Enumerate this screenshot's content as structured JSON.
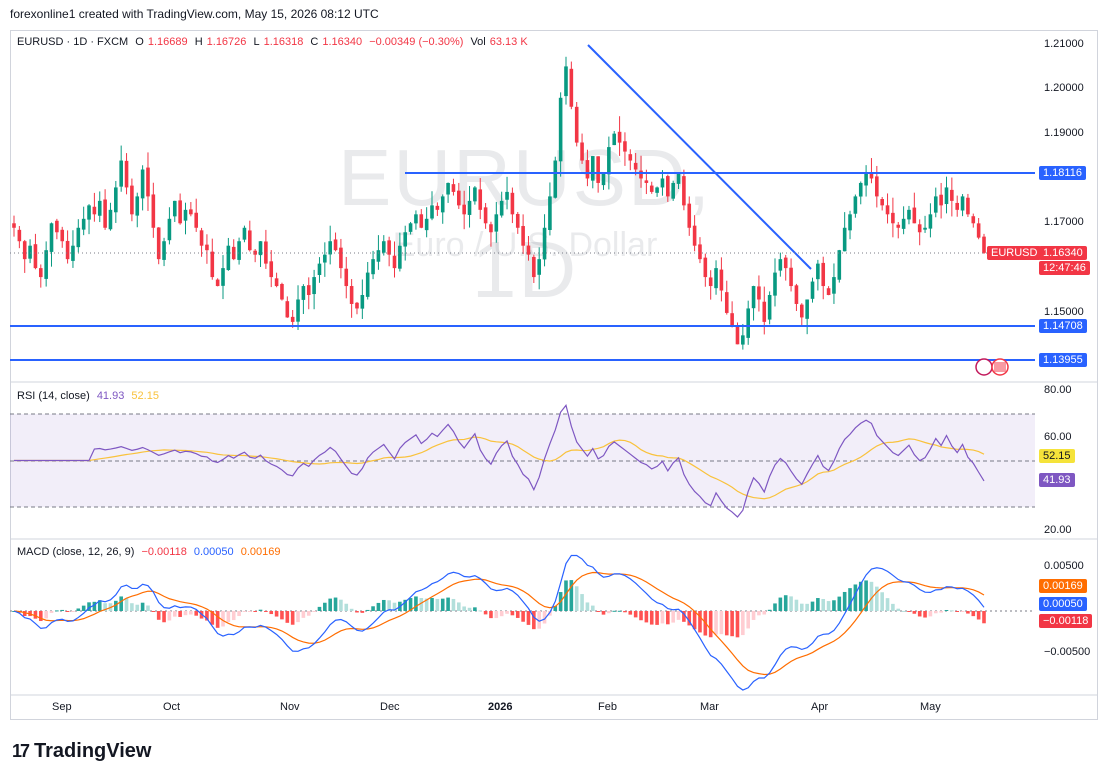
{
  "header": {
    "credit": "forexonline1 created with TradingView.com, May 15, 2026 08:12 UTC"
  },
  "legend": {
    "symbol": "EURUSD · 1D · FXCM",
    "o_label": "O",
    "o_val": "1.16689",
    "h_label": "H",
    "h_val": "1.16726",
    "l_label": "L",
    "l_val": "1.16318",
    "c_label": "C",
    "c_val": "1.16340",
    "change": "−0.00349 (−0.30%)",
    "vol_label": "Vol",
    "vol_val": "63.13 K"
  },
  "watermark": {
    "line1": "EURUSD, 1D",
    "line2": "Euro / U.S. Dollar"
  },
  "price_axis": {
    "labels": [
      "1.21000",
      "1.20000",
      "1.19000",
      "1.17000",
      "1.15000"
    ],
    "tags": {
      "res": "1.18116",
      "sym": "EURUSD",
      "price": "1.16340",
      "countdown": "12:47:46",
      "sup1": "1.14708",
      "sup2": "1.13955"
    }
  },
  "rsi": {
    "title": "RSI (14, close)",
    "val1": "41.93",
    "val2": "52.15",
    "axis": [
      "80.00",
      "60.00",
      "20.00"
    ]
  },
  "macd": {
    "title": "MACD (close, 12, 26, 9)",
    "val1": "−0.00118",
    "val2": "0.00050",
    "val3": "0.00169",
    "axis": [
      "0.00500",
      "−0.00500"
    ]
  },
  "time_axis": [
    "Sep",
    "Oct",
    "Nov",
    "Dec",
    "2026",
    "Feb",
    "Mar",
    "Apr",
    "May"
  ],
  "brand": {
    "name": "TradingView"
  },
  "colors": {
    "up": "#089981",
    "down": "#f23645",
    "line": "#2962ff",
    "rsi": "#7e57c2",
    "ma": "#f9c23c",
    "signal": "#ff6d00"
  },
  "chart_data": {
    "type": "candlestick",
    "symbol": "EURUSD",
    "timeframe": "1D",
    "ylim": [
      1.137,
      1.212
    ],
    "horizontal_levels": [
      1.18116,
      1.14708,
      1.13955
    ],
    "trendline": [
      [
        1.2095,
        "late Jan"
      ],
      [
        1.16,
        "late Mar"
      ]
    ],
    "closes": [
      1.169,
      1.166,
      1.162,
      1.165,
      1.16,
      1.158,
      1.164,
      1.17,
      1.168,
      1.166,
      1.162,
      1.165,
      1.169,
      1.171,
      1.174,
      1.172,
      1.175,
      1.169,
      1.173,
      1.178,
      1.184,
      1.178,
      1.172,
      1.176,
      1.182,
      1.176,
      1.169,
      1.162,
      1.166,
      1.171,
      1.175,
      1.17,
      1.173,
      1.172,
      1.169,
      1.165,
      1.164,
      1.158,
      1.156,
      1.16,
      1.165,
      1.162,
      1.166,
      1.169,
      1.164,
      1.163,
      1.166,
      1.161,
      1.158,
      1.156,
      1.153,
      1.149,
      1.148,
      1.153,
      1.156,
      1.154,
      1.158,
      1.161,
      1.163,
      1.166,
      1.164,
      1.16,
      1.156,
      1.152,
      1.151,
      1.154,
      1.159,
      1.162,
      1.164,
      1.166,
      1.163,
      1.16,
      1.165,
      1.168,
      1.17,
      1.172,
      1.169,
      1.171,
      1.174,
      1.173,
      1.176,
      1.179,
      1.177,
      1.174,
      1.172,
      1.175,
      1.178,
      1.173,
      1.17,
      1.168,
      1.172,
      1.175,
      1.177,
      1.172,
      1.169,
      1.165,
      1.163,
      1.158,
      1.162,
      1.169,
      1.176,
      1.184,
      1.198,
      1.205,
      1.196,
      1.188,
      1.184,
      1.18,
      1.185,
      1.179,
      1.181,
      1.187,
      1.19,
      1.188,
      1.186,
      1.184,
      1.182,
      1.18,
      1.179,
      1.177,
      1.178,
      1.18,
      1.176,
      1.179,
      1.181,
      1.174,
      1.169,
      1.165,
      1.162,
      1.158,
      1.156,
      1.16,
      1.155,
      1.15,
      1.147,
      1.143,
      1.145,
      1.151,
      1.156,
      1.153,
      1.148,
      1.154,
      1.159,
      1.162,
      1.16,
      1.156,
      1.152,
      1.149,
      1.153,
      1.157,
      1.161,
      1.156,
      1.154,
      1.158,
      1.164,
      1.169,
      1.172,
      1.176,
      1.179,
      1.181,
      1.18,
      1.176,
      1.174,
      1.172,
      1.17,
      1.169,
      1.171,
      1.173,
      1.17,
      1.168,
      1.169,
      1.172,
      1.176,
      1.174,
      1.178,
      1.175,
      1.173,
      1.176,
      1.172,
      1.17,
      1.1668,
      1.1634
    ]
  }
}
